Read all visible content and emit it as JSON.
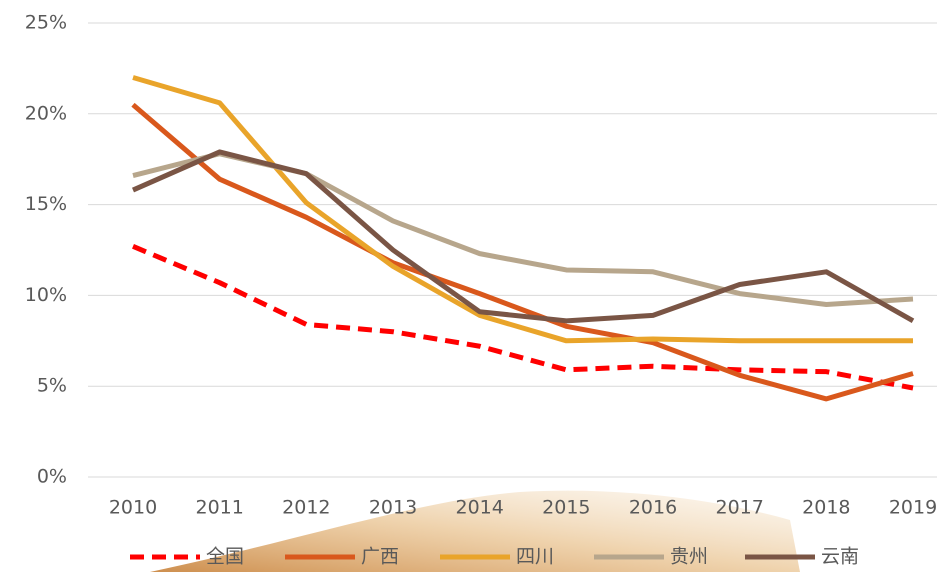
{
  "chart_data": {
    "type": "line",
    "categories": [
      "2010",
      "2011",
      "2012",
      "2013",
      "2014",
      "2015",
      "2016",
      "2017",
      "2018",
      "2019"
    ],
    "series": [
      {
        "name": "全国",
        "color": "#ff0000",
        "dash": true,
        "values": [
          12.7,
          10.7,
          8.4,
          8.0,
          7.2,
          5.9,
          6.1,
          5.9,
          5.8,
          4.9
        ]
      },
      {
        "name": "广西",
        "color": "#d9581c",
        "values": [
          20.5,
          16.4,
          14.3,
          11.8,
          10.1,
          8.3,
          7.4,
          5.6,
          4.3,
          5.7
        ]
      },
      {
        "name": "四川",
        "color": "#e9a42a",
        "values": [
          22.0,
          20.6,
          15.1,
          11.6,
          8.9,
          7.5,
          7.6,
          7.5,
          7.5,
          7.5
        ]
      },
      {
        "name": "贵州",
        "color": "#b7a68c",
        "values": [
          16.6,
          17.8,
          16.7,
          14.1,
          12.3,
          11.4,
          11.3,
          10.1,
          9.5,
          9.8
        ]
      },
      {
        "name": "云南",
        "color": "#7a5545",
        "values": [
          15.8,
          17.9,
          16.7,
          12.5,
          9.1,
          8.6,
          8.9,
          10.6,
          11.3,
          8.6
        ]
      }
    ],
    "ylim": [
      0,
      25
    ],
    "yticks": [
      {
        "value": 0,
        "label": "0%"
      },
      {
        "value": 5,
        "label": "5%"
      },
      {
        "value": 10,
        "label": "10%"
      },
      {
        "value": 15,
        "label": "15%"
      },
      {
        "value": 20,
        "label": "20%"
      },
      {
        "value": 25,
        "label": "25%"
      }
    ],
    "grid": true,
    "legend": "bottom"
  }
}
